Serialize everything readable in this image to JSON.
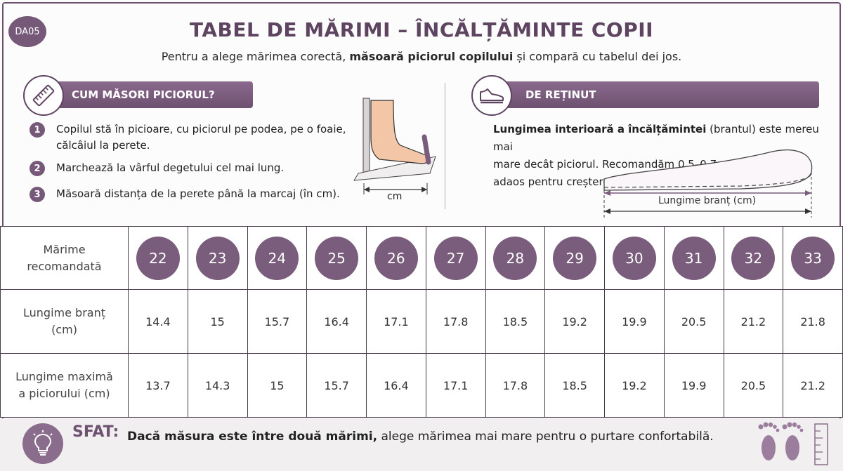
{
  "badge": "DA05",
  "title": "TABEL DE MĂRIMI – ÎNCĂLȚĂMINTE COPII",
  "subtitle": {
    "before": "Pentru a alege mărimea corectă, ",
    "bold": "măsoară piciorul copilului",
    "after": " și compară cu tabelul dei jos."
  },
  "measure": {
    "heading": "CUM MĂSORI PICIORUL?",
    "steps": [
      {
        "num": "1",
        "text_line1": "Copilul stă în picioare, cu piciorul pe podea, pe o foaie,",
        "text_line2": "călcâiul la perete."
      },
      {
        "num": "2",
        "text_line1": "Marchează la vârful degetului cel mai lung.",
        "text_line2": ""
      },
      {
        "num": "3",
        "text_line1": "Măsoară distanța de la perete până la marcaj (în cm).",
        "text_line2": ""
      }
    ],
    "unit_label": "cm"
  },
  "remember": {
    "heading": "DE REȚINUT",
    "bold": "Lungimea interioară a încălțămintei",
    "line1_rest": " (brantul) este mereu mai",
    "line2": "mare decât piciorul. Recomandăm 0,5–0,7 cm",
    "line3": "adaos pentru creștere și confort.",
    "insole_label": "Lungime branț (cm)"
  },
  "table": {
    "row_labels": {
      "size_l1": "Mărime",
      "size_l2": "recomandată",
      "insole_l1": "Lungime branț",
      "insole_l2": "(cm)",
      "foot_l1": "Lungime maximă",
      "foot_l2": "a piciorului (cm)"
    },
    "sizes": [
      "22",
      "23",
      "24",
      "25",
      "26",
      "27",
      "28",
      "29",
      "30",
      "31",
      "32",
      "33"
    ],
    "insole": [
      "14.4",
      "15",
      "15.7",
      "16.4",
      "17.1",
      "17.8",
      "18.5",
      "19.2",
      "19.9",
      "20.5",
      "21.2",
      "21.8"
    ],
    "foot": [
      "13.7",
      "14.3",
      "15",
      "15.7",
      "16.4",
      "17.1",
      "17.8",
      "18.5",
      "19.2",
      "19.9",
      "20.5",
      "21.2"
    ]
  },
  "tip": {
    "label": "SFAT:",
    "bold": "Dacă măsura este între două mărimi,",
    "rest": " alege mărimea mai mare pentru o purtare confortabilă."
  },
  "icons": {
    "ruler": "ruler-icon",
    "shoe": "shoe-icon",
    "lightbulb": "lightbulb-icon",
    "footprints": "footprints-icon"
  },
  "colors": {
    "accent": "#765879",
    "title": "#5e4460"
  }
}
